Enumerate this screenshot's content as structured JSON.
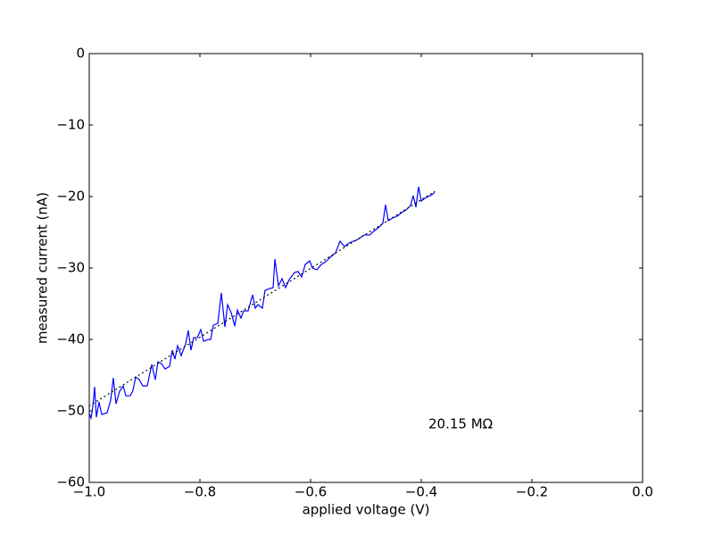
{
  "chart_data": {
    "type": "line",
    "xlabel": "applied voltage (V)",
    "ylabel": "measured current (nA)",
    "annotation": "20.15 MΩ",
    "xlim": [
      -1.0,
      0.0
    ],
    "ylim": [
      -60,
      0
    ],
    "xticks": [
      {
        "value": -1.0,
        "label": "−1.0"
      },
      {
        "value": -0.8,
        "label": "−0.8"
      },
      {
        "value": -0.6,
        "label": "−0.6"
      },
      {
        "value": -0.4,
        "label": "−0.4"
      },
      {
        "value": -0.2,
        "label": "−0.2"
      },
      {
        "value": 0.0,
        "label": "0.0"
      }
    ],
    "yticks": [
      {
        "value": -60,
        "label": "−60"
      },
      {
        "value": -50,
        "label": "−50"
      },
      {
        "value": -40,
        "label": "−40"
      },
      {
        "value": -30,
        "label": "−30"
      },
      {
        "value": -20,
        "label": "−20"
      },
      {
        "value": -10,
        "label": "−10"
      },
      0
    ],
    "series": [
      {
        "color": "#0000ff",
        "dash": "solid",
        "x": [
          -1.0,
          -0.9968,
          -0.9935,
          -0.9903,
          -0.9871,
          -0.9823,
          -0.9774,
          -0.9677,
          -0.9613,
          -0.9565,
          -0.9516,
          -0.9452,
          -0.9387,
          -0.9339,
          -0.9258,
          -0.921,
          -0.9161,
          -0.9097,
          -0.9032,
          -0.8952,
          -0.8871,
          -0.8806,
          -0.8758,
          -0.8694,
          -0.8629,
          -0.8548,
          -0.85,
          -0.8452,
          -0.8403,
          -0.8339,
          -0.8258,
          -0.821,
          -0.8161,
          -0.8113,
          -0.8048,
          -0.7984,
          -0.7935,
          -0.7855,
          -0.7806,
          -0.7758,
          -0.7677,
          -0.7613,
          -0.7548,
          -0.75,
          -0.7435,
          -0.7371,
          -0.7323,
          -0.7258,
          -0.721,
          -0.7129,
          -0.7048,
          -0.7,
          -0.6952,
          -0.6871,
          -0.6823,
          -0.6742,
          -0.6677,
          -0.6645,
          -0.6581,
          -0.6516,
          -0.6452,
          -0.6387,
          -0.629,
          -0.6226,
          -0.6161,
          -0.6097,
          -0.6016,
          -0.5968,
          -0.5887,
          -0.5806,
          -0.5726,
          -0.5645,
          -0.5548,
          -0.5468,
          -0.5387,
          -0.5306,
          -0.5226,
          -0.5145,
          -0.5032,
          -0.4935,
          -0.4839,
          -0.4758,
          -0.4694,
          -0.4645,
          -0.4597,
          -0.4516,
          -0.4435,
          -0.4355,
          -0.4274,
          -0.4194,
          -0.4145,
          -0.4097,
          -0.4048,
          -0.4,
          -0.3935,
          -0.3871,
          -0.3806,
          -0.3758
        ],
        "values": [
          -50.38,
          -51.0,
          -49.38,
          -46.63,
          -50.88,
          -48.75,
          -50.5,
          -50.25,
          -48.5,
          -45.38,
          -49.0,
          -47.25,
          -46.5,
          -47.88,
          -47.88,
          -47.13,
          -45.25,
          -45.63,
          -46.5,
          -46.5,
          -43.5,
          -45.63,
          -43.13,
          -43.38,
          -44.13,
          -43.75,
          -41.5,
          -42.75,
          -40.88,
          -42.25,
          -40.63,
          -38.75,
          -41.5,
          -39.75,
          -39.75,
          -38.63,
          -40.25,
          -40.0,
          -40.0,
          -38.0,
          -37.75,
          -33.5,
          -38.25,
          -35.13,
          -36.25,
          -38.13,
          -35.88,
          -37.0,
          -36.0,
          -36.0,
          -33.75,
          -35.63,
          -35.13,
          -35.63,
          -33.13,
          -32.88,
          -32.75,
          -28.75,
          -32.5,
          -31.5,
          -32.75,
          -31.63,
          -30.63,
          -30.5,
          -31.25,
          -29.5,
          -29.0,
          -30.0,
          -30.25,
          -29.5,
          -29.13,
          -28.5,
          -27.88,
          -26.25,
          -27.0,
          -26.5,
          -26.25,
          -26.0,
          -25.38,
          -25.38,
          -24.75,
          -24.25,
          -23.75,
          -21.13,
          -23.38,
          -23.0,
          -22.75,
          -22.25,
          -21.88,
          -21.25,
          -19.88,
          -21.5,
          -18.63,
          -20.63,
          -20.25,
          -20.0,
          -19.75,
          -19.38
        ]
      },
      {
        "color": "#000000",
        "dash": "dotted",
        "x": [
          -1.0,
          -0.376
        ],
        "values": [
          -49.3,
          -19.3
        ]
      }
    ]
  }
}
